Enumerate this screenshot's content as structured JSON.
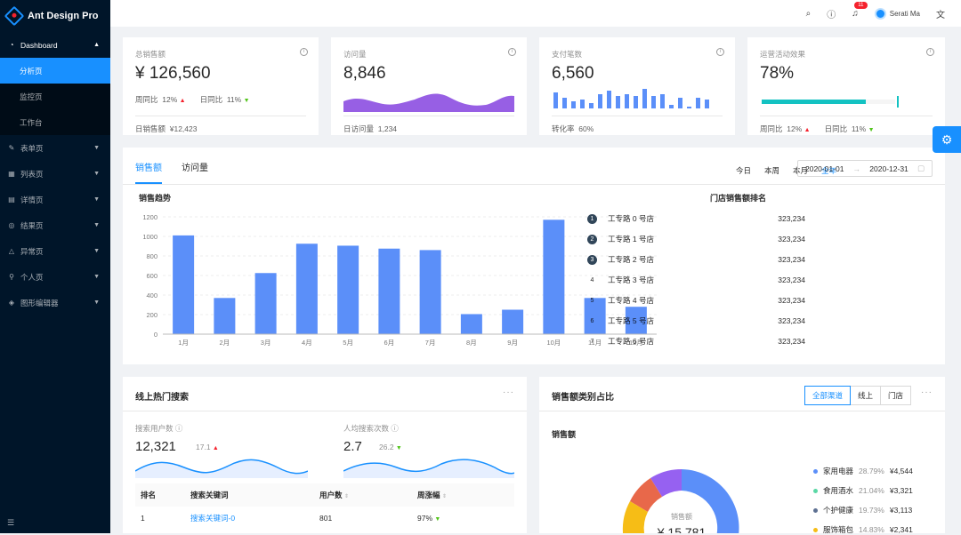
{
  "app": {
    "title": "Ant Design Pro"
  },
  "menu": {
    "dashboard": "Dashboard",
    "sub": [
      "分析页",
      "监控页",
      "工作台"
    ],
    "items": [
      {
        "label": "表单页",
        "icon": "form-icon"
      },
      {
        "label": "列表页",
        "icon": "table-icon"
      },
      {
        "label": "详情页",
        "icon": "profile-icon"
      },
      {
        "label": "结果页",
        "icon": "check-circle-icon"
      },
      {
        "label": "异常页",
        "icon": "warning-icon"
      },
      {
        "label": "个人页",
        "icon": "user-icon"
      },
      {
        "label": "图形编辑器",
        "icon": "highlight-icon"
      }
    ]
  },
  "header": {
    "user": "Serati Ma",
    "badge": "11"
  },
  "stats": [
    {
      "label": "总销售额",
      "value": "¥ 126,560",
      "wow_label": "周同比",
      "wow": "12%",
      "dod_label": "日同比",
      "dod": "11%",
      "foot_label": "日销售额",
      "foot_value": "¥12,423"
    },
    {
      "label": "访问量",
      "value": "8,846",
      "foot_label": "日访问量",
      "foot_value": "1,234"
    },
    {
      "label": "支付笔数",
      "value": "6,560",
      "foot_label": "转化率",
      "foot_value": "60%"
    },
    {
      "label": "运营活动效果",
      "value": "78%",
      "progress": 0.78,
      "wow_label": "周同比",
      "wow": "12%",
      "dod_label": "日同比",
      "dod": "11%"
    }
  ],
  "sales": {
    "tabs": [
      "销售额",
      "访问量"
    ],
    "ranges": [
      "今日",
      "本周",
      "本月",
      "全年"
    ],
    "date_start": "2020-01-01",
    "date_sep": "→",
    "date_end": "2020-12-31",
    "chart_title": "销售趋势",
    "rank_title": "门店销售额排名"
  },
  "chart_data": {
    "type": "bar",
    "categories": [
      "1月",
      "2月",
      "3月",
      "4月",
      "5月",
      "6月",
      "7月",
      "8月",
      "9月",
      "10月",
      "11月",
      "12月"
    ],
    "values": [
      1010,
      370,
      625,
      925,
      905,
      875,
      860,
      205,
      250,
      1170,
      370,
      280
    ],
    "ylim": [
      0,
      1200
    ],
    "yticks": [
      0,
      200,
      400,
      600,
      800,
      1000,
      1200
    ],
    "title": "销售趋势",
    "color": "#5b8ff9"
  },
  "ranking": [
    {
      "rank": "1",
      "name": "工专路 0 号店",
      "value": "323,234"
    },
    {
      "rank": "2",
      "name": "工专路 1 号店",
      "value": "323,234"
    },
    {
      "rank": "3",
      "name": "工专路 2 号店",
      "value": "323,234"
    },
    {
      "rank": "4",
      "name": "工专路 3 号店",
      "value": "323,234"
    },
    {
      "rank": "5",
      "name": "工专路 4 号店",
      "value": "323,234"
    },
    {
      "rank": "6",
      "name": "工专路 5 号店",
      "value": "323,234"
    },
    {
      "rank": "7",
      "name": "工专路 6 号店",
      "value": "323,234"
    }
  ],
  "search": {
    "title": "线上热门搜索",
    "users_label": "搜索用户数",
    "users": "12,321",
    "users_rate": "17.1",
    "avg_label": "人均搜索次数",
    "avg": "2.7",
    "avg_rate": "26.2",
    "columns": [
      "排名",
      "搜索关键词",
      "用户数",
      "周涨幅"
    ],
    "rows": [
      {
        "rank": "1",
        "keyword": "搜索关键词-0",
        "users": "801",
        "range": "97%"
      }
    ]
  },
  "category": {
    "title": "销售额类别占比",
    "segments": [
      "全部渠道",
      "线上",
      "门店"
    ],
    "subtitle": "销售额",
    "donut_label": "销售额",
    "donut_value": "¥ 15,781",
    "legend": [
      {
        "name": "家用电器",
        "pct": "28.79%",
        "value": "¥4,544",
        "color": "#5b8ff9"
      },
      {
        "name": "食用酒水",
        "pct": "21.04%",
        "value": "¥3,321",
        "color": "#5ad8a6"
      },
      {
        "name": "个护健康",
        "pct": "19.73%",
        "value": "¥3,113",
        "color": "#5d7092"
      },
      {
        "name": "服饰箱包",
        "pct": "14.83%",
        "value": "¥2,341",
        "color": "#f6bd16"
      }
    ]
  }
}
